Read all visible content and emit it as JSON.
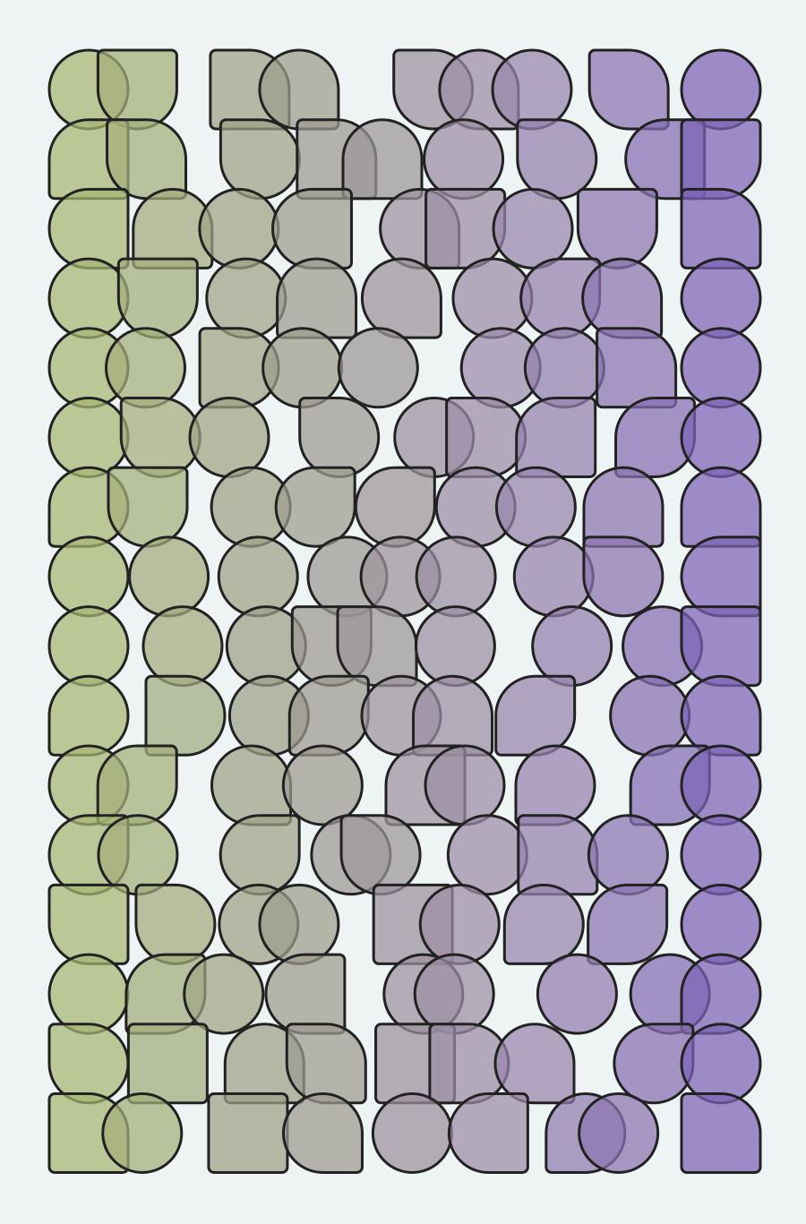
{
  "artwork": {
    "background": "#eef4f4",
    "stroke_color": "#222222",
    "gradient_colors": [
      "#a6b573",
      "#9c9c8c",
      "#9b8aab",
      "#7d62b5"
    ],
    "fill_opacity": 0.72,
    "shape_kinds": [
      "circle",
      "rounded-square-mixed-corners"
    ],
    "grid_columns": 9,
    "grid_rows": 16
  }
}
